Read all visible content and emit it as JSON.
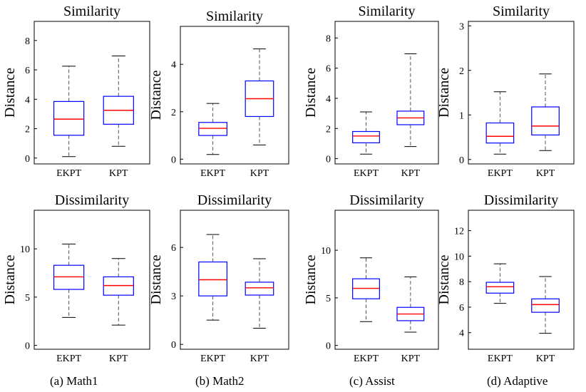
{
  "panels": [
    {
      "title": "Similarity",
      "ylabel": "Distance",
      "categories": [
        "EKPT",
        "KPT"
      ],
      "yticks": [
        0,
        2,
        4,
        6,
        8
      ],
      "ylim": [
        -0.4,
        9.3
      ],
      "boxes": [
        {
          "whislo": 0.1,
          "q1": 1.55,
          "med": 2.65,
          "q3": 3.85,
          "whishi": 6.25
        },
        {
          "whislo": 0.8,
          "q1": 2.3,
          "med": 3.25,
          "q3": 4.2,
          "whishi": 6.95
        }
      ]
    },
    {
      "title": "Similarity",
      "ylabel": "Distance",
      "categories": [
        "EKPT",
        "KPT"
      ],
      "yticks": [
        0,
        2,
        4
      ],
      "ylim": [
        -0.2,
        5.6
      ],
      "boxes": [
        {
          "whislo": 0.2,
          "q1": 1.0,
          "med": 1.3,
          "q3": 1.55,
          "whishi": 2.35
        },
        {
          "whislo": 0.6,
          "q1": 1.8,
          "med": 2.55,
          "q3": 3.3,
          "whishi": 4.65
        }
      ]
    },
    {
      "title": "Similarity",
      "ylabel": "Distance",
      "categories": [
        "EKPT",
        "KPT"
      ],
      "yticks": [
        0,
        2,
        4,
        6,
        8
      ],
      "ylim": [
        -0.35,
        9.1
      ],
      "boxes": [
        {
          "whislo": 0.3,
          "q1": 1.05,
          "med": 1.5,
          "q3": 1.8,
          "whishi": 3.1
        },
        {
          "whislo": 0.8,
          "q1": 2.25,
          "med": 2.7,
          "q3": 3.15,
          "whishi": 6.95
        }
      ]
    },
    {
      "title": "Similarity",
      "ylabel": "Distance",
      "categories": [
        "EKPT",
        "KPT"
      ],
      "yticks": [
        0,
        1,
        2,
        3
      ],
      "ylim": [
        -0.1,
        3.1
      ],
      "boxes": [
        {
          "whislo": 0.12,
          "q1": 0.37,
          "med": 0.52,
          "q3": 0.82,
          "whishi": 1.52
        },
        {
          "whislo": 0.2,
          "q1": 0.55,
          "med": 0.75,
          "q3": 1.18,
          "whishi": 1.92
        }
      ]
    },
    {
      "title": "Dissimilarity",
      "ylabel": "Distance",
      "categories": [
        "EKPT",
        "KPT"
      ],
      "yticks": [
        0,
        5,
        10
      ],
      "ylim": [
        -0.4,
        14.0
      ],
      "boxes": [
        {
          "whislo": 2.9,
          "q1": 5.8,
          "med": 7.1,
          "q3": 8.3,
          "whishi": 10.5
        },
        {
          "whislo": 2.1,
          "q1": 5.2,
          "med": 6.2,
          "q3": 7.1,
          "whishi": 9.0
        }
      ]
    },
    {
      "title": "Dissimilarity",
      "ylabel": "Distance",
      "categories": [
        "EKPT",
        "KPT"
      ],
      "yticks": [
        0,
        3,
        6
      ],
      "ylim": [
        -0.3,
        8.3
      ],
      "boxes": [
        {
          "whislo": 1.5,
          "q1": 3.0,
          "med": 4.0,
          "q3": 5.1,
          "whishi": 6.8
        },
        {
          "whislo": 1.0,
          "q1": 3.05,
          "med": 3.5,
          "q3": 3.85,
          "whishi": 5.3
        }
      ]
    },
    {
      "title": "Dissimilarity",
      "ylabel": "Distance",
      "categories": [
        "EKPT",
        "KPT"
      ],
      "yticks": [
        0,
        5,
        10
      ],
      "ylim": [
        -0.4,
        14.2
      ],
      "boxes": [
        {
          "whislo": 2.5,
          "q1": 4.9,
          "med": 6.0,
          "q3": 7.0,
          "whishi": 9.2
        },
        {
          "whislo": 1.4,
          "q1": 2.6,
          "med": 3.3,
          "q3": 4.0,
          "whishi": 7.2
        }
      ]
    },
    {
      "title": "Dissimilarity",
      "ylabel": "Distance",
      "categories": [
        "EKPT",
        "KPT"
      ],
      "yticks": [
        4,
        6,
        8,
        10,
        12
      ],
      "ylim": [
        2.7,
        13.6
      ],
      "boxes": [
        {
          "whislo": 6.3,
          "q1": 7.1,
          "med": 7.6,
          "q3": 7.95,
          "whishi": 9.4
        },
        {
          "whislo": 3.95,
          "q1": 5.6,
          "med": 6.2,
          "q3": 6.65,
          "whishi": 8.4
        }
      ]
    }
  ],
  "captions": [
    "(a)  Math1",
    "(b)  Math2",
    "(c)  Assist",
    "(d)  Adaptive"
  ],
  "colors": {
    "box": "#0000ff",
    "median": "#ff0000",
    "whisker": "#555555",
    "axis": "#000000"
  },
  "chart_data": [
    {
      "type": "box",
      "title": "Similarity",
      "caption": "(a)  Math1",
      "ylabel": "Distance",
      "categories": [
        "EKPT",
        "KPT"
      ],
      "ylim": [
        -0.4,
        9.3
      ],
      "series": [
        {
          "whislo": [
            0.1,
            0.8
          ],
          "q1": [
            1.55,
            2.3
          ],
          "median": [
            2.65,
            3.25
          ],
          "q3": [
            3.85,
            4.2
          ],
          "whishi": [
            6.25,
            6.95
          ]
        }
      ]
    },
    {
      "type": "box",
      "title": "Similarity",
      "caption": "(b)  Math2",
      "ylabel": "Distance",
      "categories": [
        "EKPT",
        "KPT"
      ],
      "ylim": [
        -0.2,
        5.6
      ],
      "series": [
        {
          "whislo": [
            0.2,
            0.6
          ],
          "q1": [
            1.0,
            1.8
          ],
          "median": [
            1.3,
            2.55
          ],
          "q3": [
            1.55,
            3.3
          ],
          "whishi": [
            2.35,
            4.65
          ]
        }
      ]
    },
    {
      "type": "box",
      "title": "Similarity",
      "caption": "(c)  Assist",
      "ylabel": "Distance",
      "categories": [
        "EKPT",
        "KPT"
      ],
      "ylim": [
        -0.35,
        9.1
      ],
      "series": [
        {
          "whislo": [
            0.3,
            0.8
          ],
          "q1": [
            1.05,
            2.25
          ],
          "median": [
            1.5,
            2.7
          ],
          "q3": [
            1.8,
            3.15
          ],
          "whishi": [
            3.1,
            6.95
          ]
        }
      ]
    },
    {
      "type": "box",
      "title": "Similarity",
      "caption": "(d)  Adaptive",
      "ylabel": "Distance",
      "categories": [
        "EKPT",
        "KPT"
      ],
      "ylim": [
        -0.1,
        3.1
      ],
      "series": [
        {
          "whislo": [
            0.12,
            0.2
          ],
          "q1": [
            0.37,
            0.55
          ],
          "median": [
            0.52,
            0.75
          ],
          "q3": [
            0.82,
            1.18
          ],
          "whishi": [
            1.52,
            1.92
          ]
        }
      ]
    },
    {
      "type": "box",
      "title": "Dissimilarity",
      "caption": "(a)  Math1",
      "ylabel": "Distance",
      "categories": [
        "EKPT",
        "KPT"
      ],
      "ylim": [
        -0.4,
        14.0
      ],
      "series": [
        {
          "whislo": [
            2.9,
            2.1
          ],
          "q1": [
            5.8,
            5.2
          ],
          "median": [
            7.1,
            6.2
          ],
          "q3": [
            8.3,
            7.1
          ],
          "whishi": [
            10.5,
            9.0
          ]
        }
      ]
    },
    {
      "type": "box",
      "title": "Dissimilarity",
      "caption": "(b)  Math2",
      "ylabel": "Distance",
      "categories": [
        "EKPT",
        "KPT"
      ],
      "ylim": [
        -0.3,
        8.3
      ],
      "series": [
        {
          "whislo": [
            1.5,
            1.0
          ],
          "q1": [
            3.0,
            3.05
          ],
          "median": [
            4.0,
            3.5
          ],
          "q3": [
            5.1,
            3.85
          ],
          "whishi": [
            6.8,
            5.3
          ]
        }
      ]
    },
    {
      "type": "box",
      "title": "Dissimilarity",
      "caption": "(c)  Assist",
      "ylabel": "Distance",
      "categories": [
        "EKPT",
        "KPT"
      ],
      "ylim": [
        -0.4,
        14.2
      ],
      "series": [
        {
          "whislo": [
            2.5,
            1.4
          ],
          "q1": [
            4.9,
            2.6
          ],
          "median": [
            6.0,
            3.3
          ],
          "q3": [
            7.0,
            4.0
          ],
          "whishi": [
            9.2,
            7.2
          ]
        }
      ]
    },
    {
      "type": "box",
      "title": "Dissimilarity",
      "caption": "(d)  Adaptive",
      "ylabel": "Distance",
      "categories": [
        "EKPT",
        "KPT"
      ],
      "ylim": [
        2.7,
        13.6
      ],
      "series": [
        {
          "whislo": [
            6.3,
            3.95
          ],
          "q1": [
            7.1,
            5.6
          ],
          "median": [
            7.6,
            6.2
          ],
          "q3": [
            7.95,
            6.65
          ],
          "whishi": [
            9.4,
            8.4
          ]
        }
      ]
    }
  ]
}
